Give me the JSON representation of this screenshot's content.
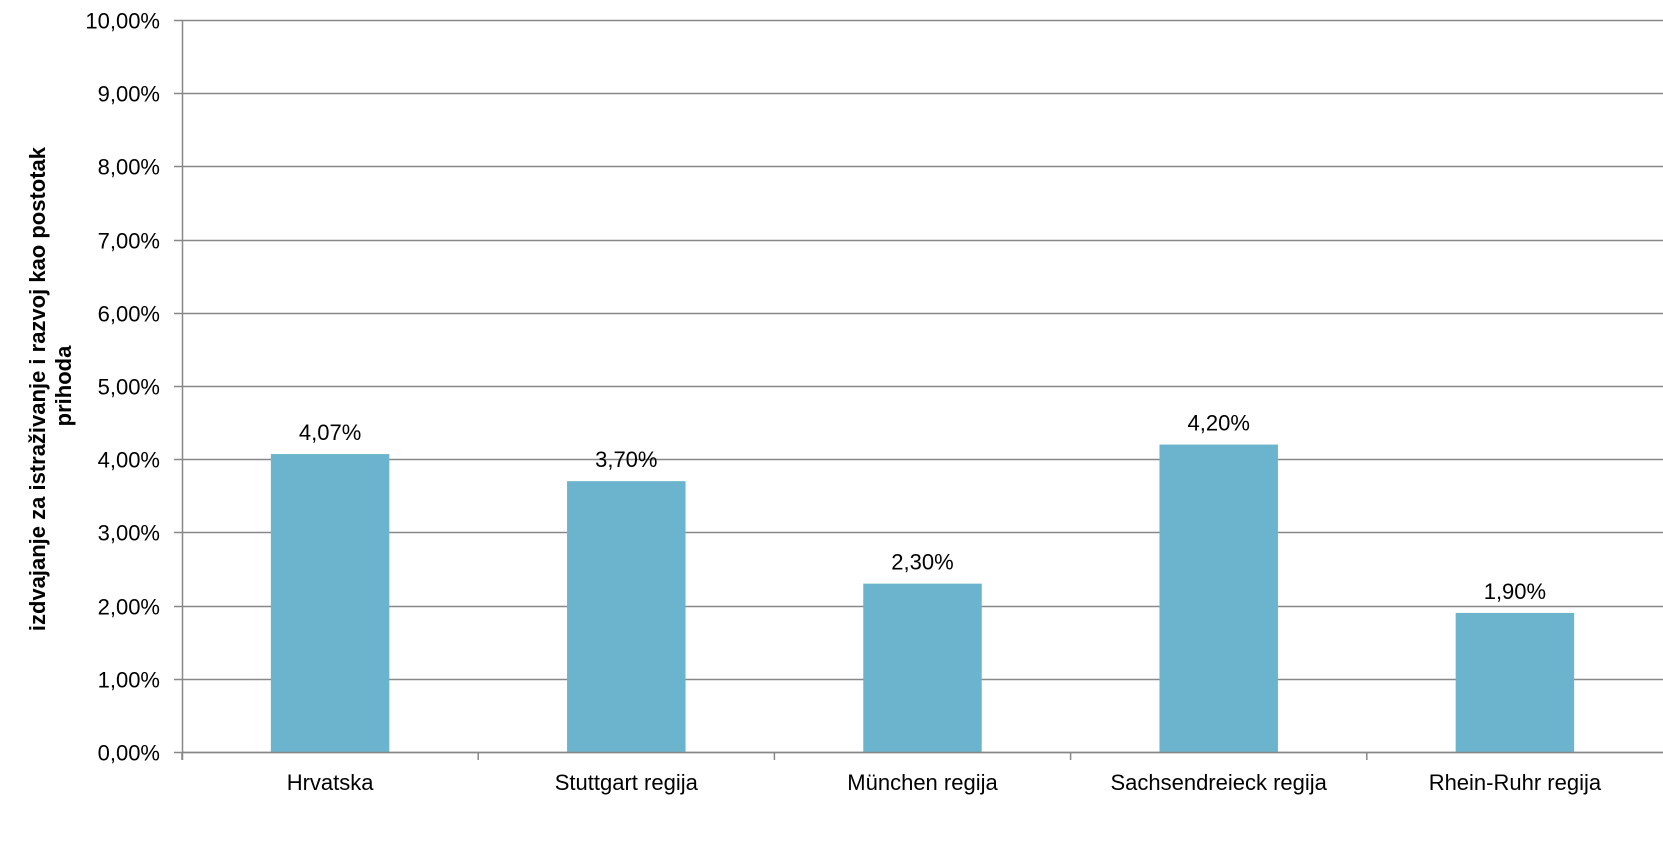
{
  "chart_data": {
    "type": "bar",
    "title": "",
    "xlabel": "",
    "ylabel_lines": [
      "izdvajanje za istraživanje i razvoj kao postotak",
      "prihoda"
    ],
    "ylim": [
      0,
      10
    ],
    "y_ticks": [
      {
        "value": 0,
        "label": "0,00%"
      },
      {
        "value": 1,
        "label": "1,00%"
      },
      {
        "value": 2,
        "label": "2,00%"
      },
      {
        "value": 3,
        "label": "3,00%"
      },
      {
        "value": 4,
        "label": "4,00%"
      },
      {
        "value": 5,
        "label": "5,00%"
      },
      {
        "value": 6,
        "label": "6,00%"
      },
      {
        "value": 7,
        "label": "7,00%"
      },
      {
        "value": 8,
        "label": "8,00%"
      },
      {
        "value": 9,
        "label": "9,00%"
      },
      {
        "value": 10,
        "label": "10,00%"
      }
    ],
    "categories": [
      "Hrvatska",
      "Stuttgart regija",
      "München regija",
      "Sachsendreieck regija",
      "Rhein-Ruhr regija"
    ],
    "values": [
      4.07,
      3.7,
      2.3,
      4.2,
      1.9
    ],
    "data_labels": [
      "4,07%",
      "3,70%",
      "2,30%",
      "4,20%",
      "1,90%"
    ],
    "grid": true,
    "legend": "none",
    "colors": {
      "bar": "#6cb4cd",
      "grid": "#888888",
      "axis": "#888888"
    }
  }
}
